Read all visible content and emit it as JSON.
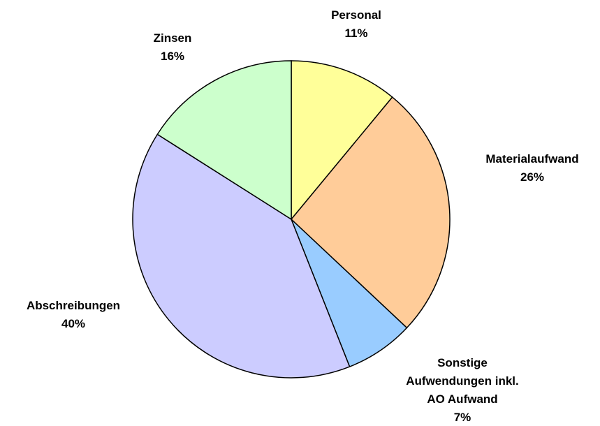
{
  "chart_data": {
    "type": "pie",
    "categories": [
      "Personal",
      "Materialaufwand",
      "Sonstige Aufwendungen inkl. AO Aufwand",
      "Abschreibungen",
      "Zinsen"
    ],
    "values": [
      11,
      26,
      7,
      40,
      16
    ],
    "value_labels": [
      "11%",
      "26%",
      "7%",
      "40%",
      "16%"
    ],
    "colors": [
      "#ffff99",
      "#ffcc99",
      "#99ccff",
      "#ccccff",
      "#ccffcc"
    ]
  }
}
